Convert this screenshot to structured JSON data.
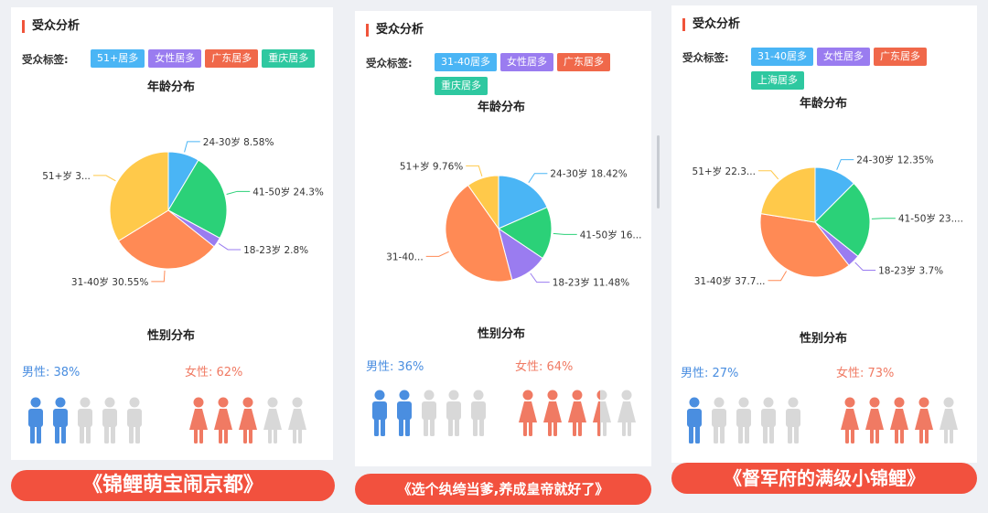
{
  "panels": [
    {
      "title": "受众分析",
      "tags_label": "受众标签:",
      "tags": [
        {
          "text": "51+居多",
          "color": "#4ab5f5"
        },
        {
          "text": "女性居多",
          "color": "#9a7cf0"
        },
        {
          "text": "广东居多",
          "color": "#f0684a"
        },
        {
          "text": "重庆居多",
          "color": "#2ec8a0"
        }
      ],
      "age_title": "年龄分布",
      "gender_title": "性别分布",
      "male_label": "男性: 38%",
      "female_label": "女性: 62%",
      "male_filled": 2,
      "female_filled": 3,
      "female_partial": 0,
      "banner": "《锦鲤萌宝闹京都》",
      "slice_labels": [
        "24-30岁 8.58%",
        "41-50岁 24.3%",
        "18-23岁 2.8%",
        "31-40岁 30.55%",
        "51+岁 3..."
      ]
    },
    {
      "title": "受众分析",
      "tags_label": "受众标签:",
      "tags": [
        {
          "text": "31-40居多",
          "color": "#4ab5f5"
        },
        {
          "text": "女性居多",
          "color": "#9a7cf0"
        },
        {
          "text": "广东居多",
          "color": "#f0684a"
        },
        {
          "text": "重庆居多",
          "color": "#2ec8a0"
        }
      ],
      "age_title": "年龄分布",
      "gender_title": "性别分布",
      "male_label": "男性: 36%",
      "female_label": "女性: 64%",
      "male_filled": 2,
      "female_filled": 3,
      "female_partial": 1,
      "banner": "《选个纨绔当爹,养成皇帝就好了》",
      "slice_labels": [
        "24-30岁 18.42%",
        "41-50岁 16...",
        "18-23岁 11.48%",
        "31-40...",
        "51+岁 9.76%"
      ]
    },
    {
      "title": "受众分析",
      "tags_label": "受众标签:",
      "tags": [
        {
          "text": "31-40居多",
          "color": "#4ab5f5"
        },
        {
          "text": "女性居多",
          "color": "#9a7cf0"
        },
        {
          "text": "广东居多",
          "color": "#f0684a"
        },
        {
          "text": "上海居多",
          "color": "#2ec8a0"
        }
      ],
      "age_title": "年龄分布",
      "gender_title": "性别分布",
      "male_label": "男性: 27%",
      "female_label": "女性: 73%",
      "male_filled": 1,
      "female_filled": 4,
      "female_partial": 0,
      "banner": "《督军府的满级小锦鲤》",
      "slice_labels": [
        "24-30岁 12.35%",
        "41-50岁 23....",
        "18-23岁 3.7%",
        "31-40岁 37.7...",
        "51+岁 22.3..."
      ]
    }
  ],
  "colors": {
    "age_24_30": "#4ab5f5",
    "age_41_50": "#2bd178",
    "age_18_23": "#9a7cf0",
    "age_31_40": "#ff8a55",
    "age_51_plus": "#ffc94a",
    "male": "#4a8ee0",
    "female": "#f07a63",
    "person_empty": "#d8d8d8"
  },
  "chart_data": [
    {
      "type": "pie",
      "title": "年龄分布",
      "categories": [
        "24-30岁",
        "41-50岁",
        "18-23岁",
        "31-40岁",
        "51+岁"
      ],
      "values": [
        8.58,
        24.3,
        2.8,
        30.55,
        33.77
      ]
    },
    {
      "type": "pie",
      "title": "年龄分布",
      "categories": [
        "24-30岁",
        "41-50岁",
        "18-23岁",
        "31-40岁",
        "51+岁"
      ],
      "values": [
        18.42,
        16.0,
        11.48,
        44.34,
        9.76
      ]
    },
    {
      "type": "pie",
      "title": "年龄分布",
      "categories": [
        "24-30岁",
        "41-50岁",
        "18-23岁",
        "31-40岁",
        "51+岁"
      ],
      "values": [
        12.35,
        23.0,
        3.7,
        37.7,
        22.3
      ]
    },
    {
      "type": "bar",
      "title": "性别分布",
      "categories": [
        "男性",
        "女性"
      ],
      "series": [
        {
          "values": [
            38,
            62
          ]
        },
        {
          "values": [
            36,
            64
          ]
        },
        {
          "values": [
            27,
            73
          ]
        }
      ]
    }
  ]
}
